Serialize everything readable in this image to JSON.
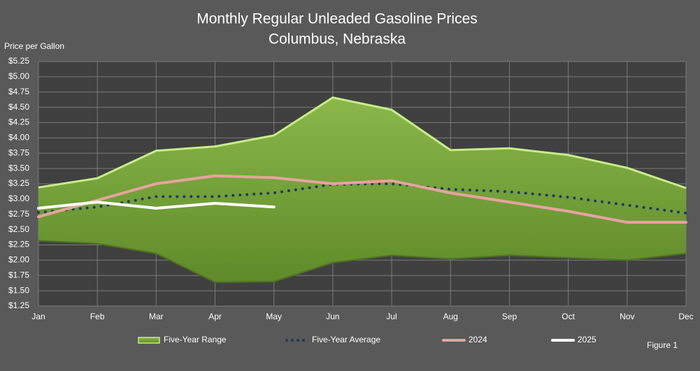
{
  "chart_data": {
    "type": "line",
    "title": "Monthly Regular Unleaded Gasoline Prices",
    "subtitle": "Columbus, Nebraska",
    "y_label": "Price per Gallon",
    "annotation": "Figure 1",
    "categories": [
      "Jan",
      "Feb",
      "Mar",
      "Apr",
      "May",
      "Jun",
      "Jul",
      "Aug",
      "Sep",
      "Oct",
      "Nov",
      "Dec"
    ],
    "ylim": [
      1.25,
      5.25
    ],
    "yticks": [
      {
        "value": 1.25,
        "label": "$1.25"
      },
      {
        "value": 1.5,
        "label": "$1.50"
      },
      {
        "value": 1.75,
        "label": "$1.75"
      },
      {
        "value": 2.0,
        "label": "$2.00"
      },
      {
        "value": 2.25,
        "label": "$2.25"
      },
      {
        "value": 2.5,
        "label": "$2.50"
      },
      {
        "value": 2.75,
        "label": "$2.75"
      },
      {
        "value": 3.0,
        "label": "$3.00"
      },
      {
        "value": 3.25,
        "label": "$3.25"
      },
      {
        "value": 3.5,
        "label": "$3.50"
      },
      {
        "value": 3.75,
        "label": "$3.75"
      },
      {
        "value": 4.0,
        "label": "$4.00"
      },
      {
        "value": 4.25,
        "label": "$4.25"
      },
      {
        "value": 4.5,
        "label": "$4.50"
      },
      {
        "value": 4.75,
        "label": "$4.75"
      },
      {
        "value": 5.0,
        "label": "$5.00"
      },
      {
        "value": 5.25,
        "label": "$5.25"
      }
    ],
    "grid": true,
    "legend": "bottom",
    "series": [
      {
        "name": "Five-Year Range",
        "color": "#77a23a",
        "upper": [
          3.19,
          3.34,
          3.79,
          3.86,
          4.04,
          4.66,
          4.46,
          3.8,
          3.83,
          3.72,
          3.51,
          3.18
        ],
        "lower": [
          2.32,
          2.27,
          2.11,
          1.64,
          1.65,
          1.96,
          2.08,
          2.02,
          2.08,
          2.04,
          2.0,
          2.11
        ]
      },
      {
        "name": "Five-Year Average",
        "color": "#1f3a5f",
        "style": "dotted",
        "values": [
          2.78,
          2.87,
          3.04,
          3.04,
          3.1,
          3.24,
          3.25,
          3.16,
          3.12,
          3.03,
          2.9,
          2.77
        ]
      },
      {
        "name": "2024",
        "color": "#e6a3a0",
        "values": [
          2.71,
          2.98,
          3.25,
          3.38,
          3.35,
          3.25,
          3.3,
          3.1,
          2.95,
          2.8,
          2.62,
          2.62
        ]
      },
      {
        "name": "2025",
        "color": "#ffffff",
        "values": [
          2.85,
          2.95,
          2.85,
          2.93,
          2.87,
          null,
          null,
          null,
          null,
          null,
          null,
          null
        ]
      }
    ]
  }
}
